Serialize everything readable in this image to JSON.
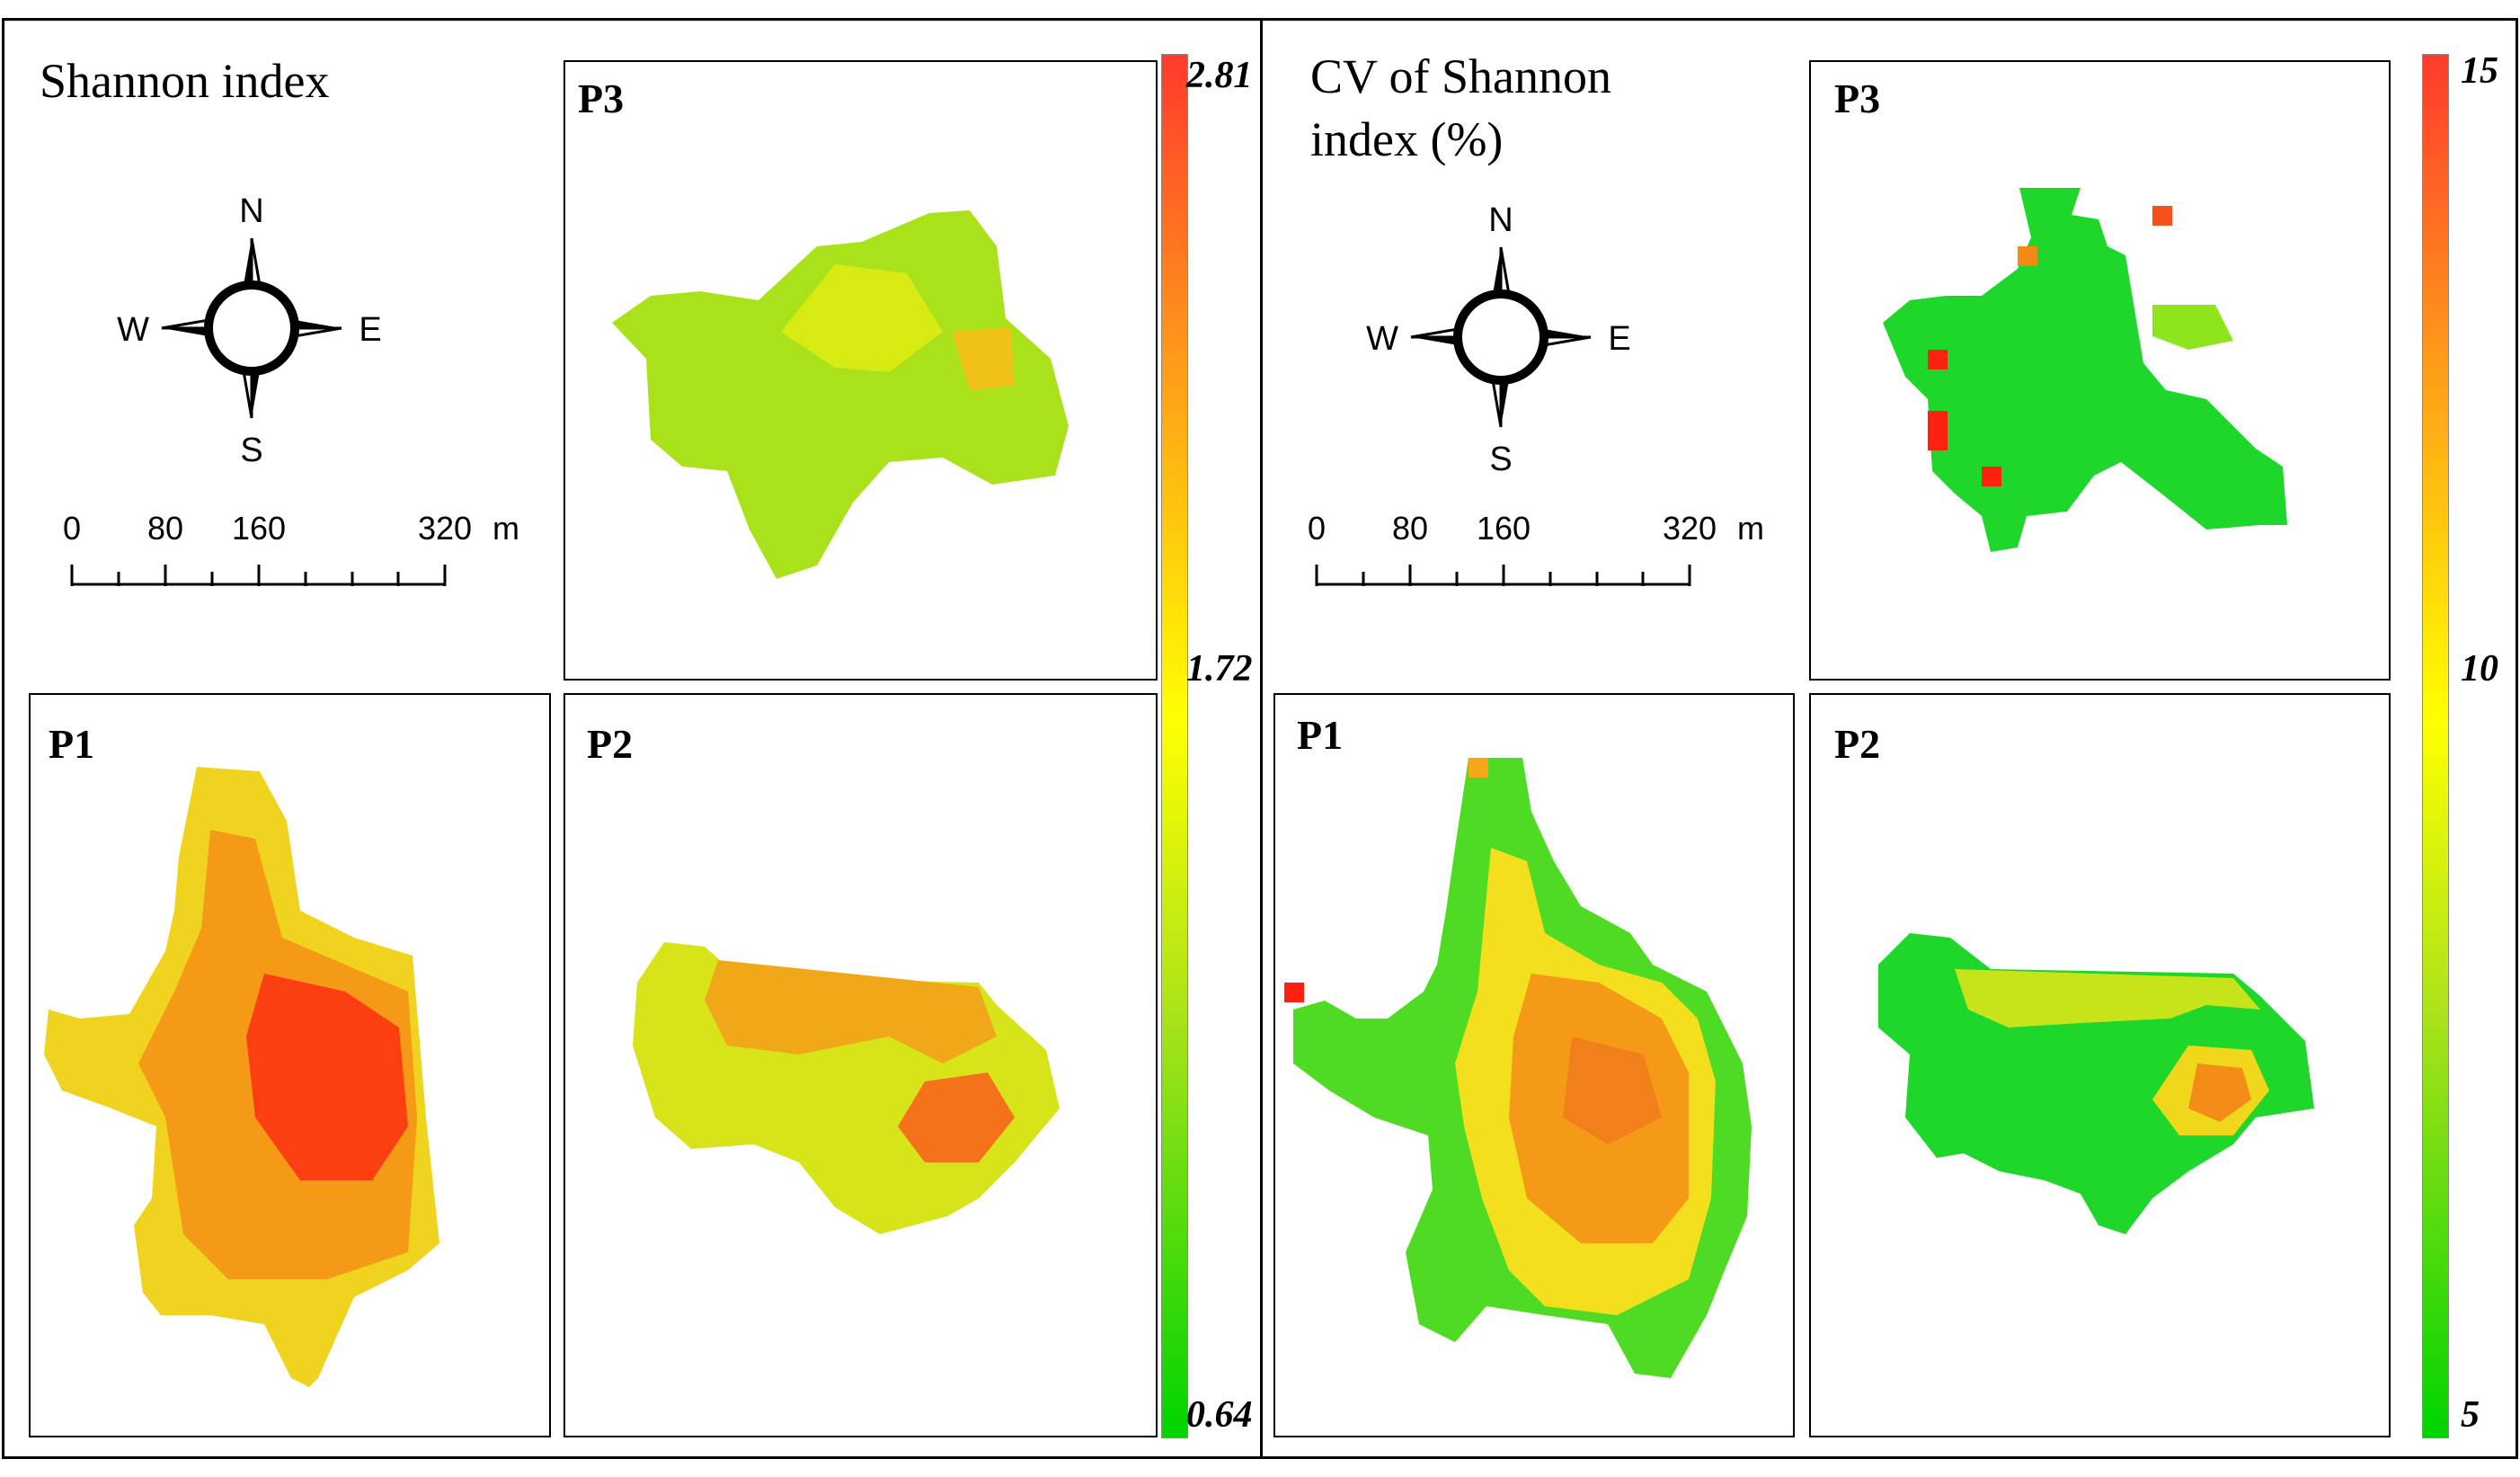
{
  "panels": [
    {
      "title": "Shannon index",
      "legend": {
        "max": "2.81",
        "mid": "1.72",
        "min": "0.64"
      },
      "compass": {
        "n": "N",
        "s": "S",
        "e": "E",
        "w": "W"
      },
      "scale": {
        "l0": "0",
        "l1": "80",
        "l2": "160",
        "l3": "320",
        "unit": "m"
      },
      "maps": {
        "p1": "P1",
        "p2": "P2",
        "p3": "P3"
      }
    },
    {
      "title_line1": "CV of Shannon",
      "title_line2": "index (%)",
      "legend": {
        "max": "15",
        "mid": "10",
        "min": "5"
      },
      "compass": {
        "n": "N",
        "s": "S",
        "e": "E",
        "w": "W"
      },
      "scale": {
        "l0": "0",
        "l1": "80",
        "l2": "160",
        "l3": "320",
        "unit": "m"
      },
      "maps": {
        "p1": "P1",
        "p2": "P2",
        "p3": "P3"
      }
    }
  ],
  "colors": {
    "low": "#00d400",
    "mid": "#ffff00",
    "high": "#ff2a10"
  }
}
